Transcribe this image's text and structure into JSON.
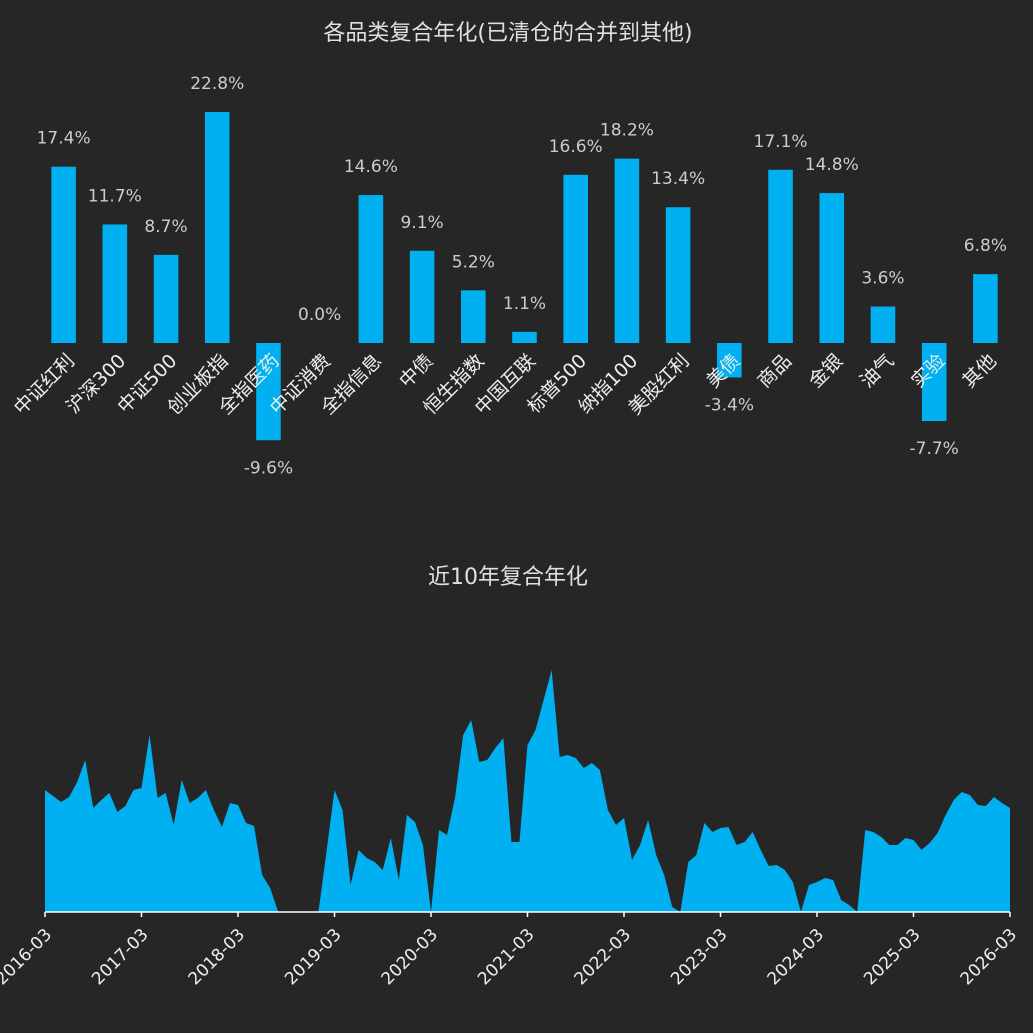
{
  "chart_data": [
    {
      "type": "bar",
      "title": "各品类复合年化(已清仓的合并到其他)",
      "categories": [
        "中证红利",
        "沪深300",
        "中证500",
        "创业板指",
        "全指医药",
        "中证消费",
        "全指信息",
        "中债",
        "恒生指数",
        "中国互联",
        "标普500",
        "纳指100",
        "美股红利",
        "美债",
        "商品",
        "金银",
        "油气",
        "实验",
        "其他"
      ],
      "values": [
        17.4,
        11.7,
        8.7,
        22.8,
        -9.6,
        0.0,
        14.6,
        9.1,
        5.2,
        1.1,
        16.6,
        18.2,
        13.4,
        -3.4,
        17.1,
        14.8,
        3.6,
        -7.7,
        6.8
      ],
      "value_labels": [
        "17.4%",
        "11.7%",
        "8.7%",
        "22.8%",
        "-9.6%",
        "0.0%",
        "14.6%",
        "9.1%",
        "5.2%",
        "1.1%",
        "16.6%",
        "18.2%",
        "13.4%",
        "-3.4%",
        "17.1%",
        "14.8%",
        "3.6%",
        "-7.7%",
        "6.8%"
      ],
      "color": "#00b0f0"
    },
    {
      "type": "area",
      "title": "近10年复合年化",
      "x": [
        "2016-03",
        "2016-04",
        "2016-05",
        "2016-06",
        "2016-07",
        "2016-08",
        "2016-09",
        "2016-10",
        "2016-11",
        "2016-12",
        "2017-01",
        "2017-02",
        "2017-03",
        "2017-04",
        "2017-05",
        "2017-06",
        "2017-07",
        "2017-08",
        "2017-09",
        "2017-10",
        "2017-11",
        "2017-12",
        "2018-01",
        "2018-02",
        "2018-03",
        "2018-04",
        "2018-05",
        "2018-06",
        "2018-07",
        "2018-08",
        "2018-09",
        "2018-10",
        "2018-11",
        "2018-12",
        "2019-01",
        "2019-02",
        "2019-03",
        "2019-04",
        "2019-05",
        "2019-06",
        "2019-07",
        "2019-08",
        "2019-09",
        "2019-10",
        "2019-11",
        "2019-12",
        "2020-01",
        "2020-02",
        "2020-03",
        "2020-04",
        "2020-05",
        "2020-06",
        "2020-07",
        "2020-08",
        "2020-09",
        "2020-10",
        "2020-11",
        "2020-12",
        "2021-01",
        "2021-02",
        "2021-03",
        "2021-04",
        "2021-05",
        "2021-06",
        "2021-07",
        "2021-08",
        "2021-09",
        "2021-10",
        "2021-11",
        "2021-12",
        "2022-01",
        "2022-02",
        "2022-03",
        "2022-04",
        "2022-05",
        "2022-06",
        "2022-07",
        "2022-08",
        "2022-09",
        "2022-10",
        "2022-11",
        "2022-12",
        "2023-01",
        "2023-02",
        "2023-03",
        "2023-04",
        "2023-05",
        "2023-06",
        "2023-07",
        "2023-08",
        "2023-09",
        "2023-10",
        "2023-11",
        "2023-12",
        "2024-01",
        "2024-02",
        "2024-03",
        "2024-04",
        "2024-05",
        "2024-06",
        "2024-07",
        "2024-08",
        "2024-09",
        "2024-10",
        "2024-11",
        "2024-12",
        "2025-01",
        "2025-02",
        "2025-03",
        "2025-04",
        "2025-05",
        "2025-06",
        "2025-07",
        "2025-08",
        "2025-09",
        "2025-10",
        "2025-11",
        "2025-12",
        "2026-01",
        "2026-02",
        "2026-03"
      ],
      "values": [
        12.2,
        11.6,
        11.0,
        11.5,
        13.0,
        15.2,
        10.4,
        11.2,
        11.9,
        10.0,
        10.6,
        12.2,
        12.4,
        17.7,
        11.4,
        11.9,
        8.7,
        13.2,
        10.9,
        11.4,
        12.2,
        10.2,
        8.5,
        10.9,
        10.7,
        8.9,
        8.6,
        3.7,
        2.4,
        0,
        0,
        0,
        0,
        0,
        0,
        6.0,
        12.2,
        10.2,
        2.7,
        6.2,
        5.4,
        5.0,
        4.2,
        7.4,
        3.2,
        9.7,
        9.0,
        6.7,
        0,
        8.2,
        7.7,
        11.5,
        17.7,
        19.2,
        15.0,
        15.2,
        16.4,
        17.4,
        7.0,
        7.0,
        16.7,
        18.2,
        21.2,
        24.2,
        15.5,
        15.7,
        15.4,
        14.4,
        14.9,
        14.2,
        10.2,
        8.7,
        9.4,
        5.2,
        6.7,
        9.2,
        5.7,
        3.7,
        0.5,
        0,
        5.0,
        5.7,
        8.9,
        8.0,
        8.4,
        8.5,
        6.7,
        7.0,
        8.0,
        6.2,
        4.6,
        4.7,
        4.2,
        3.0,
        0,
        2.7,
        3.0,
        3.4,
        3.2,
        1.2,
        0.7,
        0,
        8.2,
        8.0,
        7.5,
        6.7,
        6.7,
        7.4,
        7.2,
        6.2,
        6.9,
        7.9,
        9.7,
        11.2,
        12.0,
        11.7,
        10.7,
        10.6,
        11.5,
        10.9,
        10.4
      ],
      "xticks": [
        "2016-03",
        "2017-03",
        "2018-03",
        "2019-03",
        "2020-03",
        "2021-03",
        "2022-03",
        "2023-03",
        "2024-03",
        "2025-03",
        "2026-03"
      ],
      "color": "#00b0f0"
    }
  ]
}
